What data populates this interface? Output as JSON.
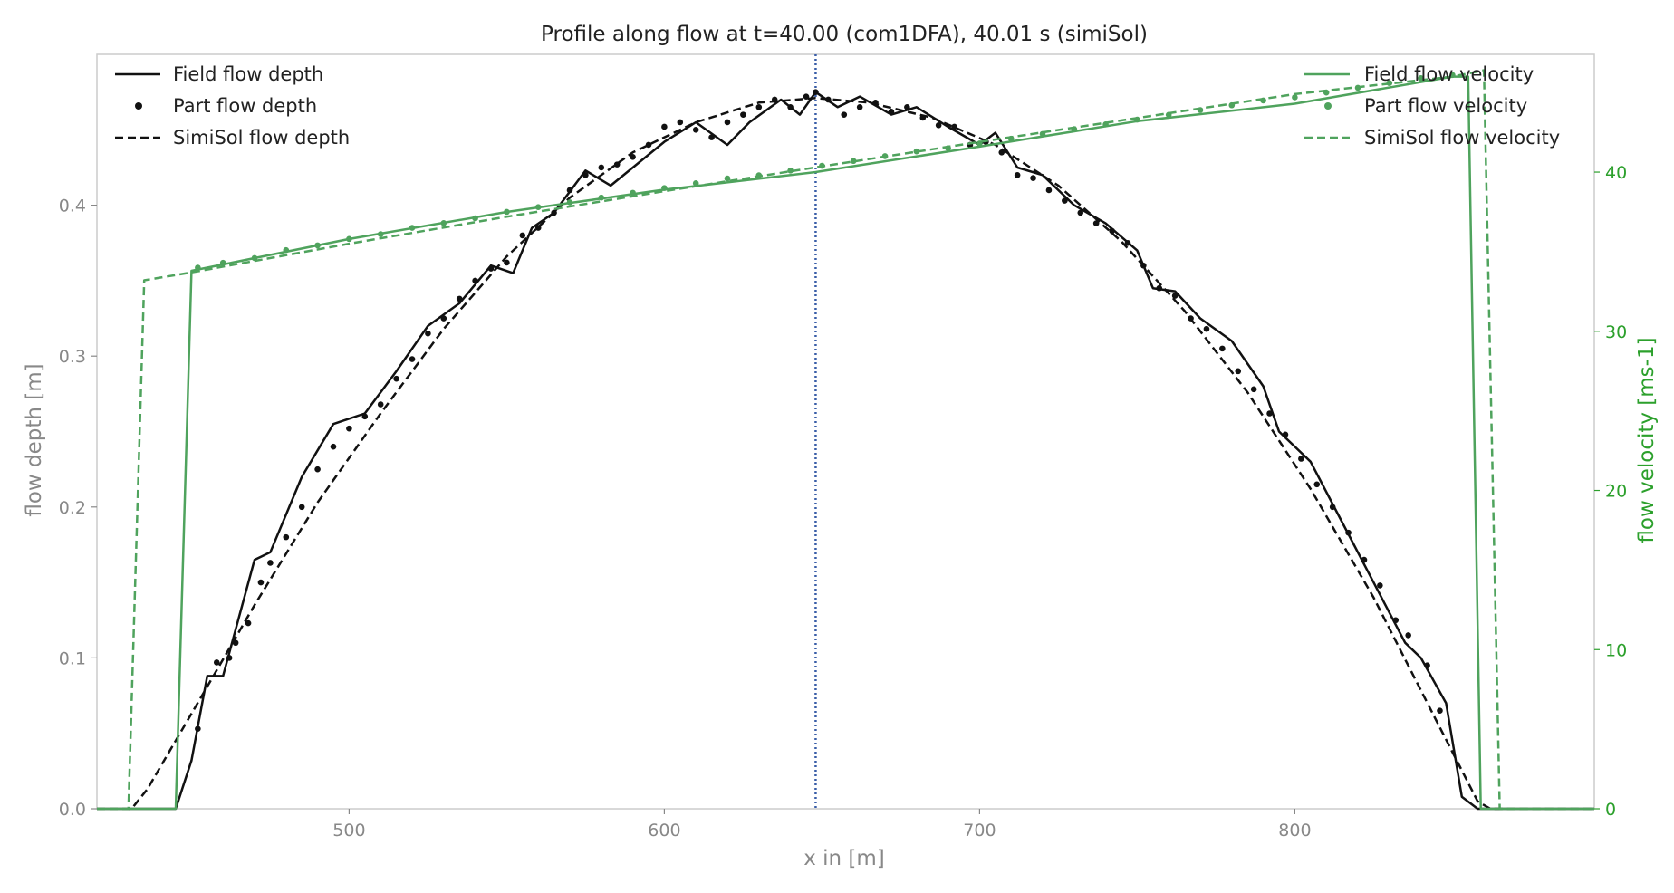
{
  "chart_data": {
    "type": "line",
    "title": "Profile along flow at t=40.00 (com1DFA), 40.01 s (simiSol)",
    "xlabel": "x in [m]",
    "ylabel_left": "flow depth [m]",
    "ylabel_right": "flow velocity [ms-1]",
    "xlim": [
      420,
      895
    ],
    "ylim_left": [
      0,
      0.5
    ],
    "ylim_right": [
      0,
      47.4
    ],
    "xticks": [
      500,
      600,
      700,
      800
    ],
    "yticks_left": [
      0.0,
      0.1,
      0.2,
      0.3,
      0.4
    ],
    "yticks_right": [
      0,
      10,
      20,
      30,
      40
    ],
    "grid": false,
    "vline_x": 648,
    "colors": {
      "depth": "#111111",
      "velocity": "#4fa35d",
      "right_axis": "#2ca02c",
      "left_axis": "#888888",
      "vline": "#3a5ea8"
    },
    "legend_left": {
      "placement": "top-left",
      "entries": [
        "Field flow depth",
        "Part flow depth",
        "SimiSol flow depth"
      ]
    },
    "legend_right": {
      "placement": "top-right",
      "entries": [
        "Field flow velocity",
        "Part flow velocity",
        "SimiSol flow velocity"
      ]
    },
    "series": [
      {
        "name": "Field flow depth",
        "axis": "left",
        "style": "solid",
        "points": [
          [
            420,
            0
          ],
          [
            445,
            0
          ],
          [
            450,
            0.032
          ],
          [
            455,
            0.088
          ],
          [
            460,
            0.088
          ],
          [
            470,
            0.165
          ],
          [
            475,
            0.17
          ],
          [
            485,
            0.22
          ],
          [
            495,
            0.255
          ],
          [
            505,
            0.262
          ],
          [
            515,
            0.29
          ],
          [
            525,
            0.32
          ],
          [
            535,
            0.335
          ],
          [
            545,
            0.36
          ],
          [
            552,
            0.355
          ],
          [
            558,
            0.385
          ],
          [
            565,
            0.395
          ],
          [
            575,
            0.423
          ],
          [
            583,
            0.413
          ],
          [
            590,
            0.425
          ],
          [
            600,
            0.442
          ],
          [
            610,
            0.455
          ],
          [
            620,
            0.44
          ],
          [
            627,
            0.455
          ],
          [
            637,
            0.47
          ],
          [
            643,
            0.46
          ],
          [
            648,
            0.475
          ],
          [
            655,
            0.465
          ],
          [
            662,
            0.472
          ],
          [
            672,
            0.46
          ],
          [
            680,
            0.465
          ],
          [
            690,
            0.452
          ],
          [
            700,
            0.44
          ],
          [
            705,
            0.448
          ],
          [
            712,
            0.425
          ],
          [
            720,
            0.42
          ],
          [
            730,
            0.4
          ],
          [
            740,
            0.388
          ],
          [
            750,
            0.37
          ],
          [
            755,
            0.345
          ],
          [
            762,
            0.343
          ],
          [
            770,
            0.325
          ],
          [
            780,
            0.31
          ],
          [
            790,
            0.28
          ],
          [
            795,
            0.25
          ],
          [
            805,
            0.23
          ],
          [
            815,
            0.19
          ],
          [
            825,
            0.15
          ],
          [
            835,
            0.11
          ],
          [
            840,
            0.1
          ],
          [
            848,
            0.07
          ],
          [
            853,
            0.008
          ],
          [
            858,
            0
          ],
          [
            895,
            0
          ]
        ]
      },
      {
        "name": "Part flow depth",
        "axis": "left",
        "style": "dots",
        "points": [
          [
            452,
            0.053
          ],
          [
            458,
            0.097
          ],
          [
            462,
            0.1
          ],
          [
            464,
            0.11
          ],
          [
            468,
            0.123
          ],
          [
            472,
            0.15
          ],
          [
            475,
            0.163
          ],
          [
            480,
            0.18
          ],
          [
            485,
            0.2
          ],
          [
            490,
            0.225
          ],
          [
            495,
            0.24
          ],
          [
            500,
            0.252
          ],
          [
            505,
            0.26
          ],
          [
            510,
            0.268
          ],
          [
            515,
            0.285
          ],
          [
            520,
            0.298
          ],
          [
            525,
            0.315
          ],
          [
            530,
            0.325
          ],
          [
            535,
            0.338
          ],
          [
            540,
            0.35
          ],
          [
            545,
            0.358
          ],
          [
            550,
            0.362
          ],
          [
            555,
            0.38
          ],
          [
            560,
            0.385
          ],
          [
            565,
            0.395
          ],
          [
            570,
            0.41
          ],
          [
            575,
            0.42
          ],
          [
            580,
            0.425
          ],
          [
            585,
            0.427
          ],
          [
            590,
            0.432
          ],
          [
            595,
            0.44
          ],
          [
            600,
            0.452
          ],
          [
            605,
            0.455
          ],
          [
            610,
            0.45
          ],
          [
            615,
            0.445
          ],
          [
            620,
            0.455
          ],
          [
            625,
            0.46
          ],
          [
            630,
            0.465
          ],
          [
            635,
            0.47
          ],
          [
            640,
            0.465
          ],
          [
            645,
            0.472
          ],
          [
            648,
            0.475
          ],
          [
            652,
            0.47
          ],
          [
            657,
            0.46
          ],
          [
            662,
            0.465
          ],
          [
            667,
            0.468
          ],
          [
            672,
            0.462
          ],
          [
            677,
            0.465
          ],
          [
            682,
            0.458
          ],
          [
            687,
            0.453
          ],
          [
            692,
            0.452
          ],
          [
            697,
            0.44
          ],
          [
            702,
            0.442
          ],
          [
            707,
            0.435
          ],
          [
            712,
            0.42
          ],
          [
            717,
            0.418
          ],
          [
            722,
            0.41
          ],
          [
            727,
            0.403
          ],
          [
            732,
            0.395
          ],
          [
            737,
            0.388
          ],
          [
            742,
            0.383
          ],
          [
            747,
            0.375
          ],
          [
            752,
            0.36
          ],
          [
            757,
            0.345
          ],
          [
            762,
            0.34
          ],
          [
            767,
            0.325
          ],
          [
            772,
            0.318
          ],
          [
            777,
            0.305
          ],
          [
            782,
            0.29
          ],
          [
            787,
            0.278
          ],
          [
            792,
            0.262
          ],
          [
            797,
            0.248
          ],
          [
            802,
            0.232
          ],
          [
            807,
            0.215
          ],
          [
            812,
            0.2
          ],
          [
            817,
            0.183
          ],
          [
            822,
            0.165
          ],
          [
            827,
            0.148
          ],
          [
            832,
            0.125
          ],
          [
            836,
            0.115
          ],
          [
            842,
            0.095
          ],
          [
            846,
            0.065
          ]
        ]
      },
      {
        "name": "SimiSol flow depth",
        "axis": "left",
        "style": "dashed",
        "points": [
          [
            420,
            0
          ],
          [
            431,
            0
          ],
          [
            436,
            0.013
          ],
          [
            450,
            0.063
          ],
          [
            470,
            0.135
          ],
          [
            490,
            0.203
          ],
          [
            510,
            0.262
          ],
          [
            530,
            0.318
          ],
          [
            550,
            0.366
          ],
          [
            570,
            0.405
          ],
          [
            590,
            0.435
          ],
          [
            610,
            0.455
          ],
          [
            630,
            0.468
          ],
          [
            648,
            0.471
          ],
          [
            665,
            0.468
          ],
          [
            685,
            0.458
          ],
          [
            705,
            0.44
          ],
          [
            725,
            0.413
          ],
          [
            745,
            0.376
          ],
          [
            765,
            0.33
          ],
          [
            785,
            0.276
          ],
          [
            805,
            0.212
          ],
          [
            825,
            0.14
          ],
          [
            845,
            0.058
          ],
          [
            858,
            0.005
          ],
          [
            862,
            0
          ],
          [
            895,
            0
          ]
        ]
      },
      {
        "name": "Field flow velocity",
        "axis": "right",
        "style": "solid",
        "points": [
          [
            420,
            0
          ],
          [
            445,
            0
          ],
          [
            450,
            33.8
          ],
          [
            460,
            34.2
          ],
          [
            500,
            35.8
          ],
          [
            550,
            37.5
          ],
          [
            600,
            38.9
          ],
          [
            648,
            40.0
          ],
          [
            700,
            41.6
          ],
          [
            750,
            43.2
          ],
          [
            800,
            44.3
          ],
          [
            850,
            46.0
          ],
          [
            855,
            46.0
          ],
          [
            859,
            0
          ],
          [
            895,
            0
          ]
        ]
      },
      {
        "name": "Part flow velocity",
        "axis": "right",
        "style": "dots",
        "points": [
          [
            452,
            34.0
          ],
          [
            460,
            34.3
          ],
          [
            470,
            34.6
          ],
          [
            480,
            35.1
          ],
          [
            490,
            35.4
          ],
          [
            500,
            35.8
          ],
          [
            510,
            36.1
          ],
          [
            520,
            36.5
          ],
          [
            530,
            36.8
          ],
          [
            540,
            37.1
          ],
          [
            550,
            37.5
          ],
          [
            560,
            37.8
          ],
          [
            570,
            38.1
          ],
          [
            580,
            38.4
          ],
          [
            590,
            38.7
          ],
          [
            600,
            39.0
          ],
          [
            610,
            39.3
          ],
          [
            620,
            39.6
          ],
          [
            630,
            39.8
          ],
          [
            640,
            40.1
          ],
          [
            650,
            40.4
          ],
          [
            660,
            40.7
          ],
          [
            670,
            41.0
          ],
          [
            680,
            41.3
          ],
          [
            690,
            41.5
          ],
          [
            700,
            41.8
          ],
          [
            710,
            42.1
          ],
          [
            720,
            42.4
          ],
          [
            730,
            42.7
          ],
          [
            740,
            43.0
          ],
          [
            750,
            43.3
          ],
          [
            760,
            43.6
          ],
          [
            770,
            43.9
          ],
          [
            780,
            44.2
          ],
          [
            790,
            44.5
          ],
          [
            800,
            44.7
          ],
          [
            810,
            45.0
          ],
          [
            820,
            45.3
          ],
          [
            830,
            45.6
          ],
          [
            840,
            45.9
          ],
          [
            850,
            46.1
          ]
        ]
      },
      {
        "name": "SimiSol flow velocity",
        "axis": "right",
        "style": "dashed",
        "points": [
          [
            420,
            0
          ],
          [
            430,
            0
          ],
          [
            435,
            33.2
          ],
          [
            450,
            33.7
          ],
          [
            500,
            35.5
          ],
          [
            550,
            37.2
          ],
          [
            600,
            38.8
          ],
          [
            648,
            40.3
          ],
          [
            700,
            41.9
          ],
          [
            750,
            43.4
          ],
          [
            800,
            44.9
          ],
          [
            850,
            46.0
          ],
          [
            860,
            46.4
          ],
          [
            865,
            0
          ],
          [
            895,
            0
          ]
        ]
      }
    ]
  }
}
